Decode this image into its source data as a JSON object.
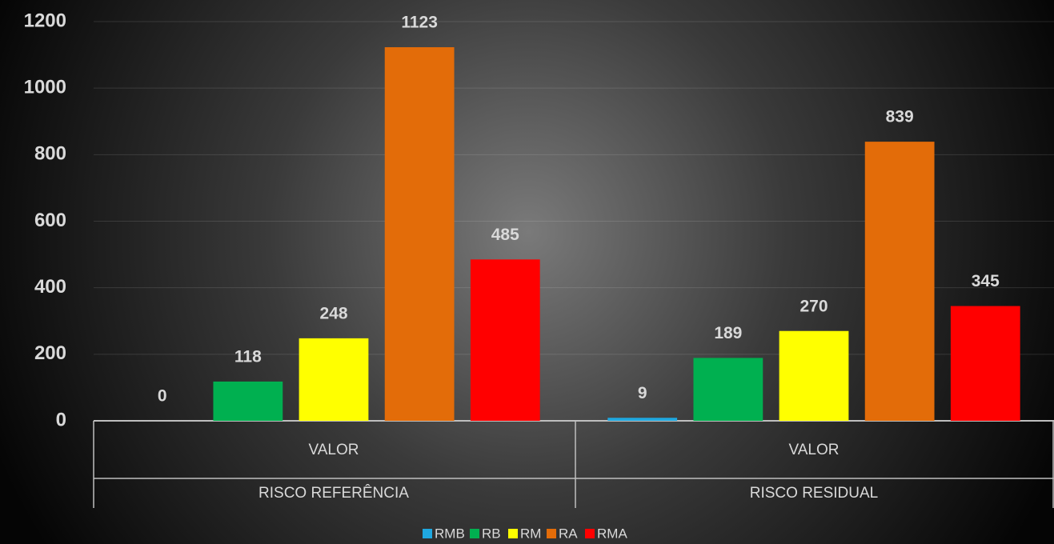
{
  "chart_data": {
    "type": "bar",
    "categories": [
      "VALOR",
      "VALOR"
    ],
    "category_groups": [
      "RISCO REFERÊNCIA",
      "RISCO RESIDUAL"
    ],
    "series": [
      {
        "name": "RMB",
        "color": "#1fa8e0",
        "values": [
          0,
          9
        ]
      },
      {
        "name": "RB",
        "color": "#00b050",
        "values": [
          118,
          189
        ]
      },
      {
        "name": "RM",
        "color": "#ffff00",
        "values": [
          248,
          270
        ]
      },
      {
        "name": "RA",
        "color": "#e36c09",
        "values": [
          1123,
          839
        ]
      },
      {
        "name": "RMA",
        "color": "#ff0000",
        "values": [
          485,
          345
        ]
      }
    ],
    "ylim": [
      0,
      1200
    ],
    "yticks": [
      0,
      200,
      400,
      600,
      800,
      1000,
      1200
    ],
    "grid": true,
    "legend": "bottom",
    "data_labels": true
  }
}
